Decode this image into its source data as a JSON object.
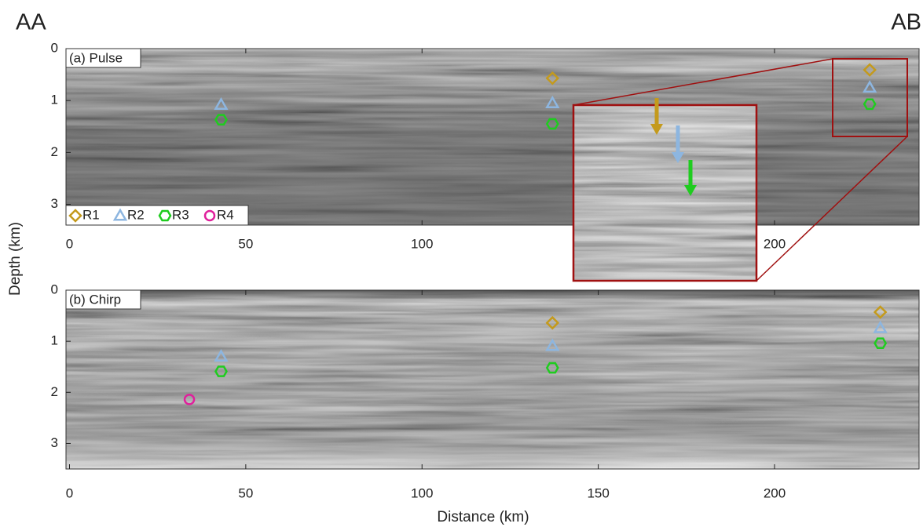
{
  "chart_data": [
    {
      "type": "scatter",
      "title": "(a) Pulse",
      "left_title": "AA",
      "right_title": "AB",
      "ylabel": "Depth (km)",
      "xlim": [
        -1,
        241
      ],
      "ylim": [
        3.4,
        0
      ],
      "xticks": [
        0,
        50,
        100,
        200
      ],
      "yticks": [
        0,
        1,
        2,
        3
      ],
      "series": [
        {
          "name": "R1",
          "color": "#c49a1c",
          "marker": "diamond",
          "x": [
            137,
            227
          ],
          "values": [
            0.57,
            0.41
          ]
        },
        {
          "name": "R2",
          "color": "#8db6e0",
          "marker": "triangle",
          "x": [
            43,
            137,
            227
          ],
          "values": [
            1.08,
            1.05,
            0.75
          ]
        },
        {
          "name": "R3",
          "color": "#1fcc1f",
          "marker": "hexagon",
          "x": [
            43,
            137,
            227
          ],
          "values": [
            1.37,
            1.45,
            1.07
          ]
        },
        {
          "name": "R4",
          "color": "#e0209c",
          "marker": "circle",
          "x": [],
          "values": []
        }
      ],
      "legend": "lower left"
    },
    {
      "type": "scatter",
      "title": "(b) Chirp",
      "xlabel": "Distance (km)",
      "xlim": [
        -1,
        241
      ],
      "ylim": [
        3.5,
        0
      ],
      "xticks": [
        0,
        50,
        100,
        150,
        200
      ],
      "yticks": [
        0,
        1,
        2,
        3
      ],
      "series": [
        {
          "name": "R1",
          "color": "#c49a1c",
          "marker": "diamond",
          "x": [
            137,
            230
          ],
          "values": [
            0.64,
            0.43
          ]
        },
        {
          "name": "R2",
          "color": "#8db6e0",
          "marker": "triangle",
          "x": [
            43,
            137,
            230
          ],
          "values": [
            1.3,
            1.09,
            0.74
          ]
        },
        {
          "name": "R3",
          "color": "#1fcc1f",
          "marker": "hexagon",
          "x": [
            43,
            137,
            230
          ],
          "values": [
            1.59,
            1.52,
            1.04
          ]
        },
        {
          "name": "R4",
          "color": "#e0209c",
          "marker": "circle",
          "x": [
            34
          ],
          "values": [
            2.14
          ]
        }
      ]
    }
  ]
}
